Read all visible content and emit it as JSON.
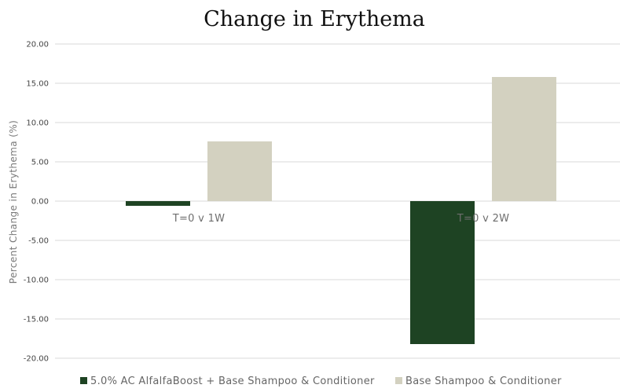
{
  "chart_data": {
    "type": "bar",
    "title": "Change in Erythema",
    "ylabel": "Percent Change in Erythema (%)",
    "xlabel": "",
    "categories": [
      "T=0 v 1W",
      "T=0 v 2W"
    ],
    "series": [
      {
        "name": "5.0% AC AlfalfaBoost + Base Shampoo & Conditioner",
        "color": "#1e4323",
        "values": [
          -0.6,
          -18.2
        ]
      },
      {
        "name": "Base Shampoo & Conditioner",
        "color": "#d3d1c0",
        "values": [
          7.6,
          15.8
        ]
      }
    ],
    "ylim": [
      -20,
      20
    ],
    "yticks": [
      "20.00",
      "15.00",
      "10.00",
      "5.00",
      "0.00",
      "-5.00",
      "-10.00",
      "-15.00",
      "-20.00"
    ],
    "grid": true,
    "legend_position": "bottom",
    "gridline_color": "#d9d9d9"
  }
}
